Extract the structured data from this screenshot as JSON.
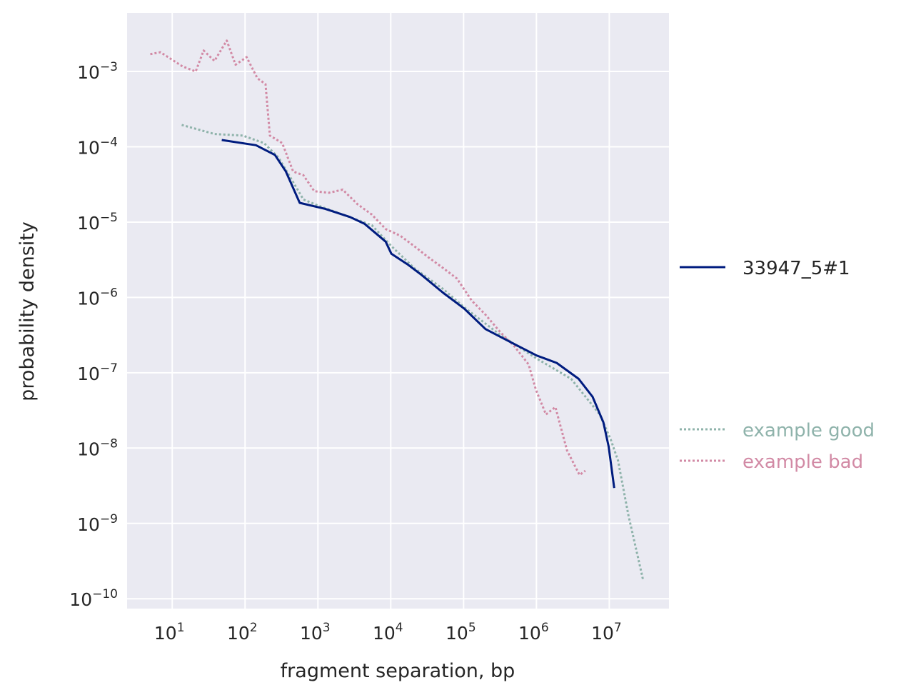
{
  "chart_data": {
    "type": "line",
    "title": "",
    "xlabel": "fragment separation, bp",
    "ylabel": "probability density",
    "xscale": "log",
    "yscale": "log",
    "xlim": [
      2.4,
      66000000.0
    ],
    "ylim": [
      7.4e-11,
      0.006
    ],
    "grid": true,
    "background_color": "#eaeaf2",
    "xticks": [
      {
        "value": 10,
        "base": "10",
        "exp": "1"
      },
      {
        "value": 100,
        "base": "10",
        "exp": "2"
      },
      {
        "value": 1000,
        "base": "10",
        "exp": "3"
      },
      {
        "value": 10000,
        "base": "10",
        "exp": "4"
      },
      {
        "value": 100000,
        "base": "10",
        "exp": "5"
      },
      {
        "value": 1000000,
        "base": "10",
        "exp": "6"
      },
      {
        "value": 10000000,
        "base": "10",
        "exp": "7"
      }
    ],
    "yticks": [
      {
        "value": 0.001,
        "base": "10",
        "exp": "−3"
      },
      {
        "value": 0.0001,
        "base": "10",
        "exp": "−4"
      },
      {
        "value": 1e-05,
        "base": "10",
        "exp": "−5"
      },
      {
        "value": 1e-06,
        "base": "10",
        "exp": "−6"
      },
      {
        "value": 1e-07,
        "base": "10",
        "exp": "−7"
      },
      {
        "value": 1e-08,
        "base": "10",
        "exp": "−8"
      },
      {
        "value": 1e-09,
        "base": "10",
        "exp": "−9"
      },
      {
        "value": 1e-10,
        "base": "10",
        "exp": "−10"
      }
    ],
    "legend_placement": "right, outside",
    "series": [
      {
        "name": "33947_5#1",
        "color": "#001c7f",
        "style": "solid",
        "points": [
          [
            47.9,
            0.000123
          ],
          [
            141,
            0.000105
          ],
          [
            257,
            7.8e-05
          ],
          [
            363,
            4.7e-05
          ],
          [
            562,
            1.8e-05
          ],
          [
            1259,
            1.5e-05
          ],
          [
            2754,
            1.17e-05
          ],
          [
            4365,
            9.5e-06
          ],
          [
            8511,
            5.5e-06
          ],
          [
            10200,
            3.8e-06
          ],
          [
            17000,
            2.75e-06
          ],
          [
            26300,
            2e-06
          ],
          [
            52500,
            1.15e-06
          ],
          [
            102000,
            7.1e-07
          ],
          [
            200000,
            3.8e-07
          ],
          [
            500000,
            2.4e-07
          ],
          [
            1000000,
            1.7e-07
          ],
          [
            1900000,
            1.35e-07
          ],
          [
            3800000,
            8.3e-08
          ],
          [
            5900000,
            4.8e-08
          ],
          [
            8300000,
            2.2e-08
          ],
          [
            9800000,
            1.05e-08
          ],
          [
            11700000,
            2.95e-09
          ]
        ]
      },
      {
        "name": "example good",
        "color": "#8fb3ab",
        "style": "dotted",
        "points": [
          [
            13.5,
            0.000195
          ],
          [
            38,
            0.000148
          ],
          [
            93,
            0.000141
          ],
          [
            182,
            0.000112
          ],
          [
            288,
            7.2e-05
          ],
          [
            457,
            3.4e-05
          ],
          [
            631,
            2e-05
          ],
          [
            1000,
            1.66e-05
          ],
          [
            2188,
            1.26e-05
          ],
          [
            5495,
            9.1e-06
          ],
          [
            10200,
            4.8e-06
          ],
          [
            21000,
            2.45e-06
          ],
          [
            52500,
            1.29e-06
          ],
          [
            102000,
            7.4e-07
          ],
          [
            316000,
            3.2e-07
          ],
          [
            1000000,
            1.55e-07
          ],
          [
            3000000,
            8.3e-08
          ],
          [
            7400000,
            2.8e-08
          ],
          [
            10500000,
            1.29e-08
          ],
          [
            13200000,
            6.8e-09
          ],
          [
            18200000,
            1.32e-09
          ],
          [
            29000000,
            1.8e-10
          ]
        ]
      },
      {
        "name": "example bad",
        "color": "#d28aa5",
        "style": "dotted",
        "points": [
          [
            5.0,
            0.0017
          ],
          [
            6.9,
            0.0018
          ],
          [
            13.8,
            0.00117
          ],
          [
            21,
            0.001
          ],
          [
            27,
            0.0019
          ],
          [
            38,
            0.00138
          ],
          [
            56,
            0.00257
          ],
          [
            74,
            0.00123
          ],
          [
            105,
            0.00155
          ],
          [
            148,
            0.00081
          ],
          [
            191,
            0.00068
          ],
          [
            219,
            0.000141
          ],
          [
            324,
            0.000112
          ],
          [
            457,
            4.7e-05
          ],
          [
            631,
            4.2e-05
          ],
          [
            891,
            2.57e-05
          ],
          [
            1413,
            2.45e-05
          ],
          [
            2188,
            2.7e-05
          ],
          [
            3467,
            1.74e-05
          ],
          [
            5495,
            1.26e-05
          ],
          [
            8511,
            8.1e-06
          ],
          [
            13500,
            6.6e-06
          ],
          [
            21000,
            4.8e-06
          ],
          [
            33000,
            3.4e-06
          ],
          [
            52500,
            2.45e-06
          ],
          [
            81000,
            1.78e-06
          ],
          [
            129000,
            9.1e-07
          ],
          [
            200000,
            5.9e-07
          ],
          [
            316000,
            3.5e-07
          ],
          [
            500000,
            2.24e-07
          ],
          [
            780000,
            1.29e-07
          ],
          [
            980000,
            6e-08
          ],
          [
            1350000,
            2.8e-08
          ],
          [
            1820000,
            3.5e-08
          ],
          [
            2630000,
            9.3e-09
          ],
          [
            3900000,
            4.4e-09
          ],
          [
            4700000,
            5e-09
          ]
        ]
      }
    ]
  }
}
